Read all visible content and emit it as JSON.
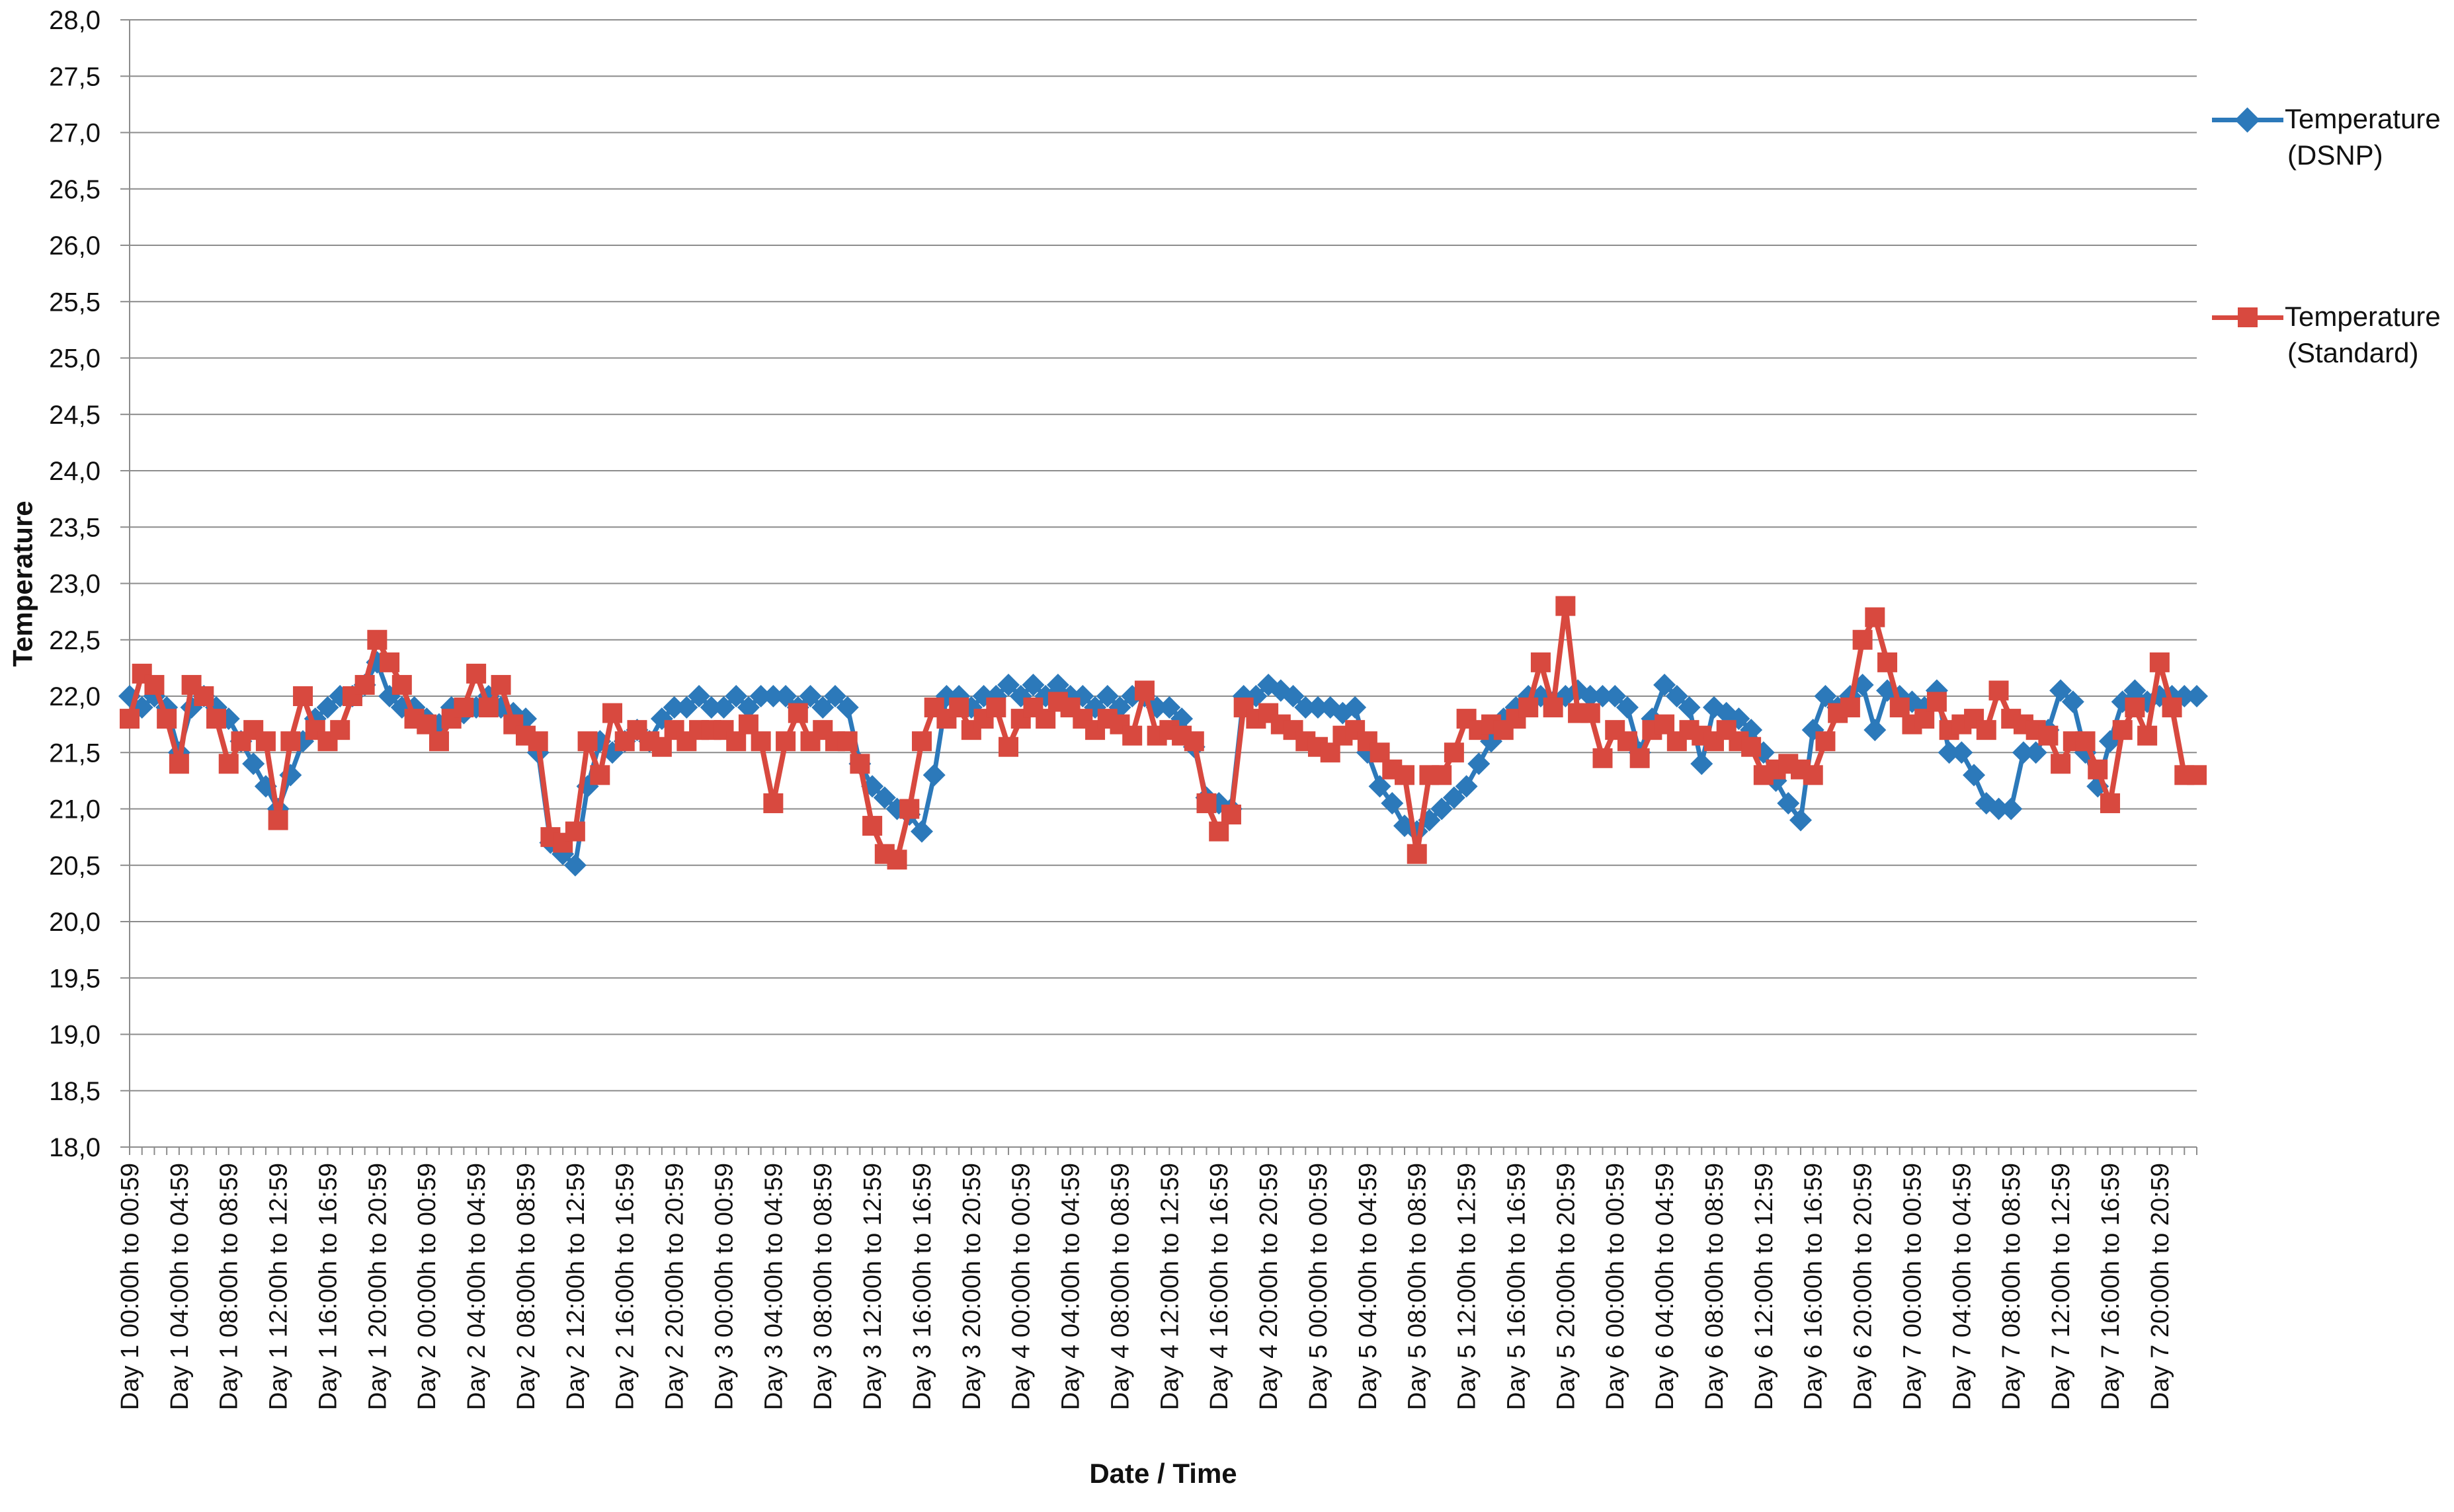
{
  "chart_data": {
    "type": "line",
    "title": "",
    "xlabel": "Date / Time",
    "ylabel": "Temperature",
    "ylim": [
      18.0,
      28.0
    ],
    "y_tick_step": 0.5,
    "y_tick_labels": [
      "18,0",
      "18,5",
      "19,0",
      "19,5",
      "20,0",
      "20,5",
      "21,0",
      "21,5",
      "22,0",
      "22,5",
      "23,0",
      "23,5",
      "24,0",
      "24,5",
      "25,0",
      "25,5",
      "26,0",
      "26,5",
      "27,0",
      "27,5",
      "28,0"
    ],
    "decimal_comma": true,
    "grid": true,
    "grid_color": "#8C8C8C",
    "axis_color": "#8C8C8C",
    "text_color": "#111111",
    "legend_position": "right",
    "points_per_hour": 1,
    "x_label_every": 4,
    "x_tick_labels": [
      "Day 1 00:00h to 00:59",
      "Day 1 04:00h to 04:59",
      "Day 1 08:00h to 08:59",
      "Day 1 12:00h to 12:59",
      "Day 1 16:00h to 16:59",
      "Day 1 20:00h to 20:59",
      "Day 2 00:00h to 00:59",
      "Day 2 04:00h to 04:59",
      "Day 2 08:00h to 08:59",
      "Day 2 12:00h to 12:59",
      "Day 2 16:00h to 16:59",
      "Day 2 20:00h to 20:59",
      "Day 3 00:00h to 00:59",
      "Day 3 04:00h to 04:59",
      "Day 3 08:00h to 08:59",
      "Day 3 12:00h to 12:59",
      "Day 3 16:00h to 16:59",
      "Day 3 20:00h to 20:59",
      "Day 4 00:00h to 00:59",
      "Day 4 04:00h to 04:59",
      "Day 4 08:00h to 08:59",
      "Day 4 12:00h to 12:59",
      "Day 4 16:00h to 16:59",
      "Day 4 20:00h to 20:59",
      "Day 5 00:00h to 00:59",
      "Day 5 04:00h to 04:59",
      "Day 5 08:00h to 08:59",
      "Day 5 12:00h to 12:59",
      "Day 5 16:00h to 16:59",
      "Day 5 20:00h to 20:59",
      "Day 6 00:00h to 00:59",
      "Day 6 04:00h to 04:59",
      "Day 6 08:00h to 08:59",
      "Day 6 12:00h to 12:59",
      "Day 6 16:00h to 16:59",
      "Day 6 20:00h to 20:59",
      "Day 7 00:00h to 00:59",
      "Day 7 04:00h to 04:59",
      "Day 7 08:00h to 08:59",
      "Day 7 12:00h to 12:59",
      "Day 7 16:00h to 16:59",
      "Day 7 20:00h to 20:59"
    ],
    "series": [
      {
        "name": "Temperature (DSNP)",
        "legend_lines": [
          "Temperature",
          "(DSNP)"
        ],
        "color": "#2C79BA",
        "marker": "diamond",
        "values": [
          22.0,
          21.9,
          22.0,
          21.9,
          21.5,
          21.9,
          22.0,
          21.9,
          21.8,
          21.6,
          21.4,
          21.2,
          21.0,
          21.3,
          21.6,
          21.8,
          21.9,
          22.0,
          22.0,
          22.1,
          22.3,
          22.0,
          21.9,
          21.9,
          21.8,
          21.75,
          21.9,
          21.85,
          21.9,
          22.0,
          21.9,
          21.85,
          21.8,
          21.5,
          20.7,
          20.6,
          20.5,
          21.2,
          21.6,
          21.5,
          21.6,
          21.7,
          21.6,
          21.8,
          21.9,
          21.9,
          22.0,
          21.9,
          21.9,
          22.0,
          21.9,
          22.0,
          22.0,
          22.0,
          21.9,
          22.0,
          21.9,
          22.0,
          21.9,
          21.4,
          21.2,
          21.1,
          21.0,
          20.95,
          20.8,
          21.3,
          22.0,
          22.0,
          21.9,
          22.0,
          22.0,
          22.1,
          22.0,
          22.1,
          22.0,
          22.1,
          22.0,
          22.0,
          21.9,
          22.0,
          21.9,
          22.0,
          22.0,
          21.9,
          21.9,
          21.8,
          21.55,
          21.1,
          21.05,
          21.0,
          22.0,
          22.0,
          22.1,
          22.05,
          22.0,
          21.9,
          21.9,
          21.9,
          21.85,
          21.9,
          21.5,
          21.2,
          21.05,
          20.85,
          20.8,
          20.9,
          21.0,
          21.1,
          21.2,
          21.4,
          21.6,
          21.8,
          21.9,
          22.0,
          22.0,
          21.95,
          22.0,
          22.05,
          22.0,
          22.0,
          22.0,
          21.9,
          21.5,
          21.8,
          22.1,
          22.0,
          21.9,
          21.4,
          21.9,
          21.85,
          21.8,
          21.7,
          21.5,
          21.25,
          21.05,
          20.9,
          21.7,
          22.0,
          21.9,
          22.0,
          22.1,
          21.7,
          22.05,
          22.0,
          21.95,
          21.9,
          22.05,
          21.5,
          21.5,
          21.3,
          21.05,
          21.0,
          21.0,
          21.5,
          21.5,
          21.7,
          22.05,
          21.95,
          21.5,
          21.2,
          21.6,
          21.95,
          22.05,
          21.95,
          22.0,
          22.0,
          22.0,
          22.0
        ]
      },
      {
        "name": "Temperature (Standard)",
        "legend_lines": [
          "Temperature",
          "(Standard)"
        ],
        "color": "#D8493F",
        "marker": "square",
        "values": [
          21.8,
          22.2,
          22.1,
          21.8,
          21.4,
          22.1,
          22.0,
          21.8,
          21.4,
          21.6,
          21.7,
          21.6,
          20.9,
          21.6,
          22.0,
          21.7,
          21.6,
          21.7,
          22.0,
          22.1,
          22.5,
          22.3,
          22.1,
          21.8,
          21.75,
          21.6,
          21.8,
          21.9,
          22.2,
          21.9,
          22.1,
          21.75,
          21.65,
          21.6,
          20.75,
          20.7,
          20.8,
          21.6,
          21.3,
          21.85,
          21.6,
          21.7,
          21.6,
          21.55,
          21.7,
          21.6,
          21.7,
          21.7,
          21.7,
          21.6,
          21.75,
          21.6,
          21.05,
          21.6,
          21.85,
          21.6,
          21.7,
          21.6,
          21.6,
          21.4,
          20.85,
          20.6,
          20.55,
          21.0,
          21.6,
          21.9,
          21.8,
          21.9,
          21.7,
          21.8,
          21.9,
          21.55,
          21.8,
          21.9,
          21.8,
          21.95,
          21.9,
          21.8,
          21.7,
          21.8,
          21.75,
          21.65,
          22.05,
          21.65,
          21.7,
          21.65,
          21.6,
          21.05,
          20.8,
          20.95,
          21.9,
          21.8,
          21.85,
          21.75,
          21.7,
          21.6,
          21.55,
          21.5,
          21.65,
          21.7,
          21.6,
          21.5,
          21.35,
          21.3,
          20.6,
          21.3,
          21.3,
          21.5,
          21.8,
          21.7,
          21.75,
          21.7,
          21.8,
          21.9,
          22.3,
          21.9,
          22.8,
          21.85,
          21.85,
          21.45,
          21.7,
          21.6,
          21.45,
          21.7,
          21.75,
          21.6,
          21.7,
          21.65,
          21.6,
          21.7,
          21.6,
          21.55,
          21.3,
          21.35,
          21.4,
          21.35,
          21.3,
          21.6,
          21.85,
          21.9,
          22.5,
          22.7,
          22.3,
          21.9,
          21.75,
          21.8,
          21.95,
          21.7,
          21.75,
          21.8,
          21.7,
          22.05,
          21.8,
          21.75,
          21.7,
          21.65,
          21.4,
          21.6,
          21.6,
          21.35,
          21.05,
          21.7,
          21.9,
          21.65,
          22.3,
          21.9,
          21.3,
          21.3
        ]
      }
    ]
  }
}
